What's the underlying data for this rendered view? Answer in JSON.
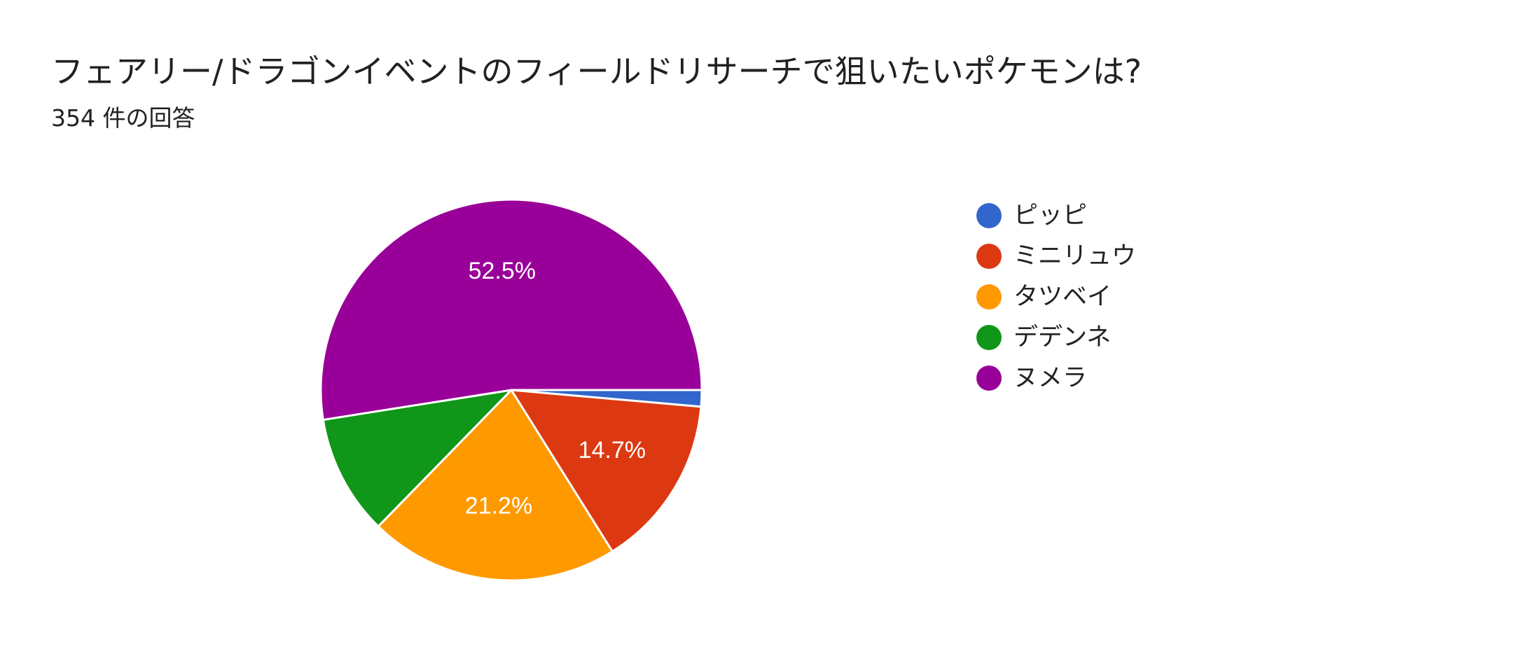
{
  "header": {
    "title": "フェアリー/ドラゴンイベントのフィールドリサーチで狙いたいポケモンは?",
    "response_count": "354 件の回答"
  },
  "chart_data": {
    "type": "pie",
    "title": "フェアリー/ドラゴンイベントのフィールドリサーチで狙いたいポケモンは?",
    "subtitle": "354 件の回答",
    "legend_position": "right",
    "slices": [
      {
        "name": "ピッピ",
        "percent": 1.4,
        "label": "",
        "color": "#3366cc"
      },
      {
        "name": "ミニリュウ",
        "percent": 14.7,
        "label": "14.7%",
        "color": "#dc3912"
      },
      {
        "name": "タツベイ",
        "percent": 21.2,
        "label": "21.2%",
        "color": "#ff9900"
      },
      {
        "name": "デデンネ",
        "percent": 10.2,
        "label": "",
        "color": "#109618"
      },
      {
        "name": "ヌメラ",
        "percent": 52.5,
        "label": "52.5%",
        "color": "#990099"
      }
    ]
  }
}
